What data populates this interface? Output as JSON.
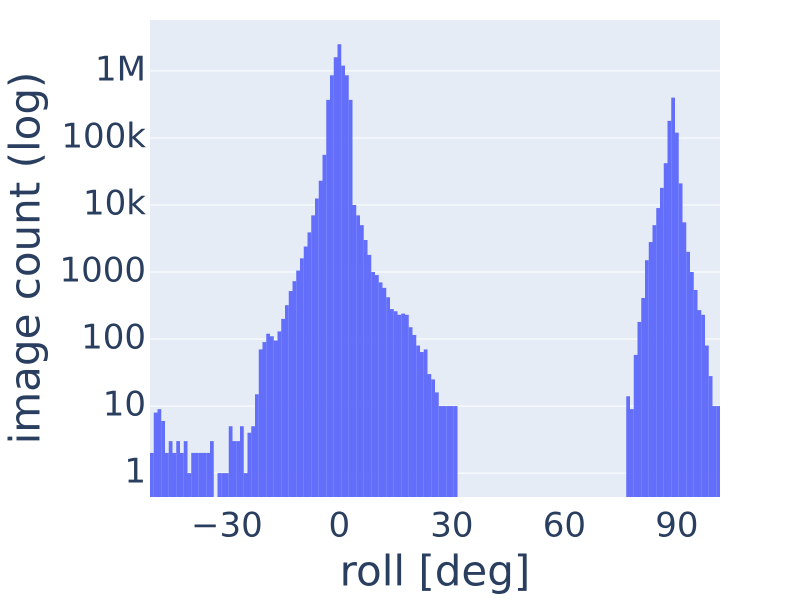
{
  "chart_data": {
    "type": "histogram",
    "x_label": "roll [deg]",
    "y_label": "image count (log)",
    "color": "#636efa",
    "background": "#e5ecf6",
    "ylog": true,
    "ygrid": true,
    "xgrid": false,
    "xlim": [
      -50.5,
      101.5
    ],
    "ylim": [
      0.44,
      5750000
    ],
    "xticks": [
      {
        "value": -30,
        "label": "−30"
      },
      0,
      30,
      60,
      90
    ],
    "yticks": [
      1,
      10,
      100,
      1000,
      {
        "value": 10000,
        "label": "10k"
      },
      {
        "value": 100000,
        "label": "100k"
      },
      {
        "value": 1000000,
        "label": "1M"
      }
    ],
    "bins": [
      -50.5,
      -49.5,
      -48.5,
      -47.5,
      -46.5,
      -45.5,
      -44.5,
      -43.5,
      -42.5,
      -41.5,
      -40.5,
      -39.5,
      -38.5,
      -37.5,
      -36.5,
      -35.5,
      -34.5,
      -33.5,
      -32.5,
      -31.5,
      -30.5,
      -29.5,
      -28.5,
      -27.5,
      -26.5,
      -25.5,
      -24.5,
      -23.5,
      -22.5,
      -21.5,
      -20.5,
      -19.5,
      -18.5,
      -17.5,
      -16.5,
      -15.5,
      -14.5,
      -13.5,
      -12.5,
      -11.5,
      -10.5,
      -9.5,
      -8.5,
      -7.5,
      -6.5,
      -5.5,
      -4.5,
      -3.5,
      -2.5,
      -1.5,
      -0.5,
      0.5,
      1.5,
      2.5,
      3.5,
      4.5,
      5.5,
      6.5,
      7.5,
      8.5,
      9.5,
      10.5,
      11.5,
      12.5,
      13.5,
      14.5,
      15.5,
      16.5,
      17.5,
      18.5,
      19.5,
      20.5,
      21.5,
      22.5,
      23.5,
      24.5,
      25.5,
      26.5,
      27.5,
      28.5,
      29.5,
      30.5,
      31.5,
      32.5,
      33.5,
      34.5,
      35.5,
      36.5,
      37.5,
      38.5,
      39.5,
      40.5,
      41.5,
      42.5,
      43.5,
      44.5,
      45.5,
      46.5,
      47.5,
      48.5,
      49.5,
      50.5,
      51.5,
      52.5,
      53.5,
      54.5,
      55.5,
      56.5,
      57.5,
      58.5,
      59.5,
      60.5,
      61.5,
      62.5,
      63.5,
      64.5,
      65.5,
      66.5,
      67.5,
      68.5,
      69.5,
      70.5,
      71.5,
      72.5,
      73.5,
      74.5,
      75.5,
      76.5,
      77.5,
      78.5,
      79.5,
      80.5,
      81.5,
      82.5,
      83.5,
      84.5,
      85.5,
      86.5,
      87.5,
      88.5,
      89.5,
      90.5,
      91.5,
      92.5,
      93.5,
      94.5,
      95.5,
      96.5,
      97.5,
      98.5,
      99.5,
      100.5,
      101.5
    ],
    "counts": [
      2,
      8,
      9,
      6,
      2,
      3,
      2,
      3,
      2,
      3,
      1,
      2,
      2,
      2,
      2,
      2,
      3,
      0,
      1,
      1,
      1,
      5,
      3,
      3,
      5,
      1,
      4,
      5,
      15,
      70,
      90,
      120,
      110,
      95,
      130,
      200,
      320,
      520,
      730,
      1050,
      1600,
      2400,
      3900,
      7000,
      12500,
      23000,
      56000,
      370000,
      860000,
      1600000,
      2500000,
      1200000,
      860000,
      370000,
      10000,
      7000,
      5000,
      3000,
      1800,
      1000,
      900,
      700,
      580,
      420,
      280,
      260,
      230,
      240,
      230,
      150,
      115,
      80,
      64,
      70,
      30,
      25,
      16,
      10,
      10,
      10,
      10,
      10,
      0,
      0,
      0,
      0,
      0,
      0,
      0,
      0,
      0,
      0,
      0,
      0,
      0,
      0,
      0,
      0,
      0,
      0,
      0,
      0,
      0,
      0,
      0,
      0,
      0,
      0,
      0,
      0,
      0,
      0,
      0,
      0,
      0,
      0,
      0,
      0,
      0,
      0,
      0,
      0,
      0,
      0,
      0,
      0,
      0,
      14,
      9,
      58,
      180,
      410,
      1500,
      2800,
      5000,
      9000,
      18000,
      42000,
      180000,
      400000,
      120000,
      21000,
      5500,
      2000,
      1000,
      540,
      270,
      230,
      80,
      28,
      10,
      10
    ]
  }
}
